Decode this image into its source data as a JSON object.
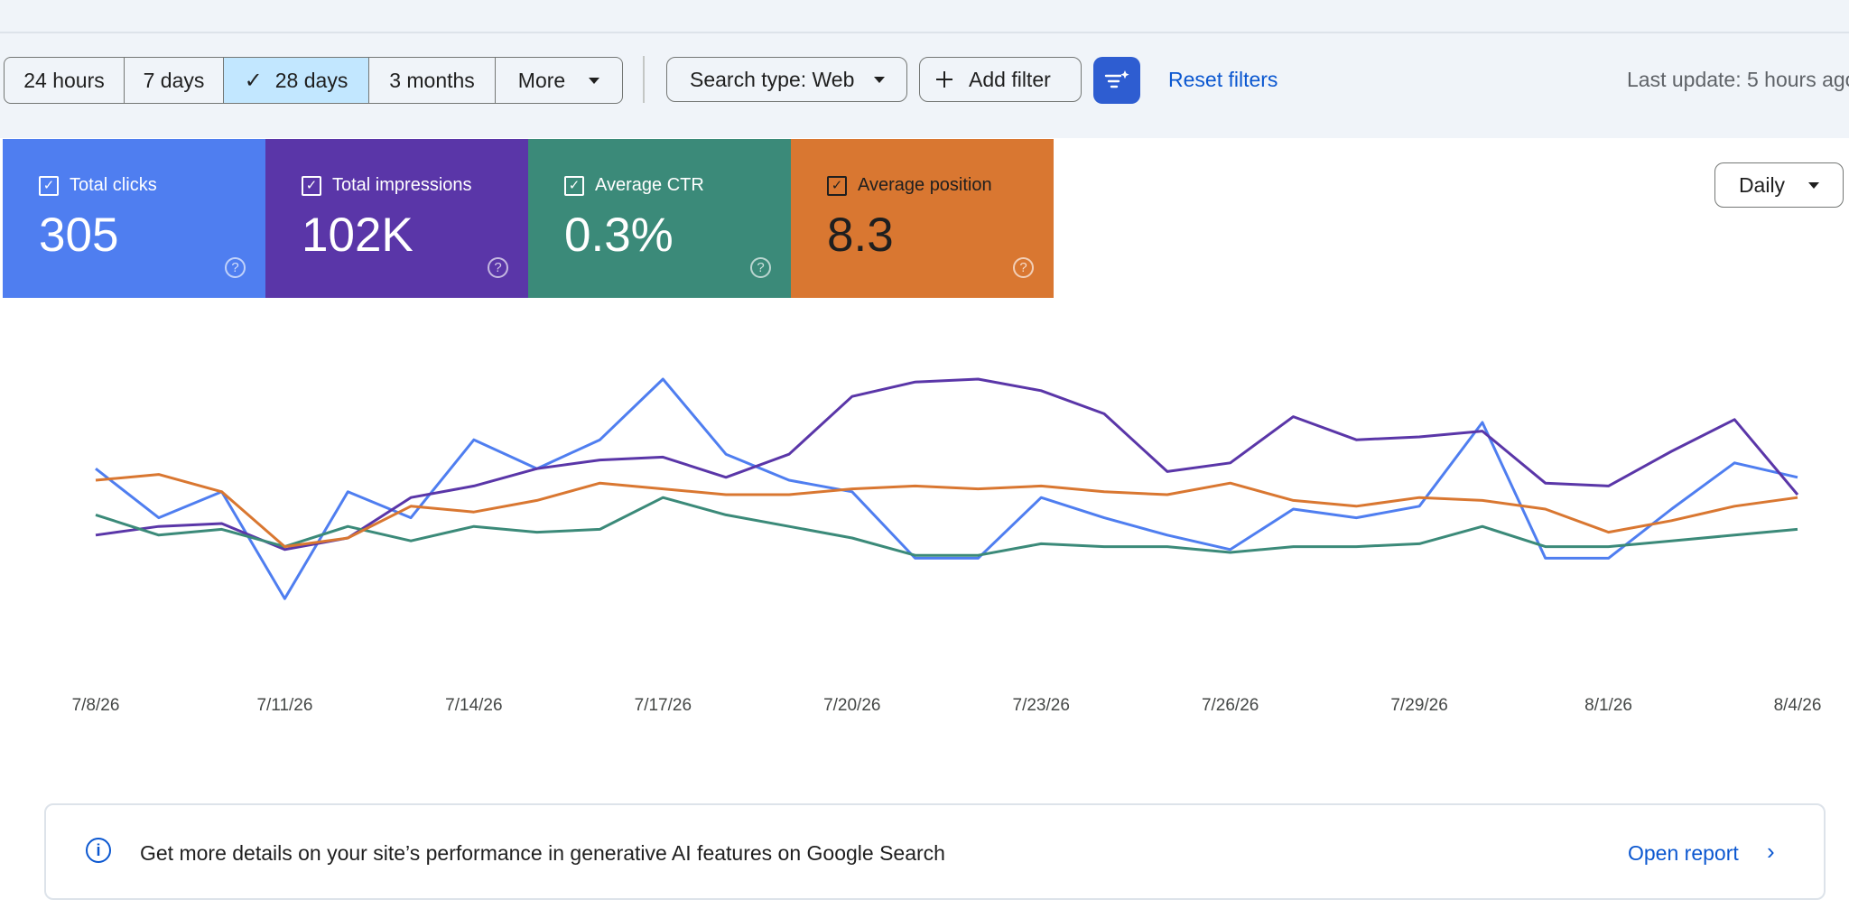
{
  "toolbar": {
    "ranges": [
      "24 hours",
      "7 days",
      "28 days",
      "3 months",
      "More"
    ],
    "selected_range": "28 days",
    "search_type": "Search type: Web",
    "add_filter": "Add filter",
    "reset_filters": "Reset filters",
    "last_update": "Last update: 5 hours ago"
  },
  "metrics": [
    {
      "label": "Total clicks",
      "value": "305",
      "color": "#4f7ef0",
      "checked": true
    },
    {
      "label": "Total impressions",
      "value": "102K",
      "color": "#5a36a8",
      "checked": true
    },
    {
      "label": "Average CTR",
      "value": "0.3%",
      "color": "#3b8a79",
      "checked": true
    },
    {
      "label": "Average position",
      "value": "8.3",
      "color": "#d97731",
      "checked": true
    }
  ],
  "granularity": "Daily",
  "chart_data": {
    "type": "line",
    "x": [
      "7/8/26",
      "7/9/26",
      "7/10/26",
      "7/11/26",
      "7/12/26",
      "7/13/26",
      "7/14/26",
      "7/15/26",
      "7/16/26",
      "7/17/26",
      "7/18/26",
      "7/19/26",
      "7/20/26",
      "7/21/26",
      "7/22/26",
      "7/23/26",
      "7/24/26",
      "7/25/26",
      "7/26/26",
      "7/27/26",
      "7/28/26",
      "7/29/26",
      "7/30/26",
      "7/31/26",
      "8/1/26",
      "8/2/26",
      "8/3/26",
      "8/4/26"
    ],
    "x_tick_labels": [
      "7/8/26",
      "7/11/26",
      "7/14/26",
      "7/17/26",
      "7/20/26",
      "7/23/26",
      "7/26/26",
      "7/29/26",
      "8/1/26",
      "8/4/26"
    ],
    "series_colors": [
      "#4f7ef0",
      "#5a36a8",
      "#3b8a79",
      "#d97731"
    ],
    "series": [
      {
        "name": "Total clicks",
        "values": [
          0.69,
          0.52,
          0.61,
          0.24,
          0.61,
          0.52,
          0.79,
          0.69,
          0.79,
          1.0,
          0.74,
          0.65,
          0.61,
          0.38,
          0.38,
          0.59,
          0.52,
          0.46,
          0.41,
          0.55,
          0.52,
          0.56,
          0.85,
          0.38,
          0.38,
          0.55,
          0.71,
          0.66
        ]
      },
      {
        "name": "Total impressions",
        "values": [
          0.46,
          0.49,
          0.5,
          0.41,
          0.45,
          0.59,
          0.63,
          0.69,
          0.72,
          0.73,
          0.66,
          0.74,
          0.94,
          0.99,
          1.0,
          0.96,
          0.88,
          0.68,
          0.71,
          0.87,
          0.79,
          0.8,
          0.82,
          0.64,
          0.63,
          0.75,
          0.86,
          0.6
        ]
      },
      {
        "name": "Average CTR",
        "values": [
          0.53,
          0.46,
          0.48,
          0.42,
          0.49,
          0.44,
          0.49,
          0.47,
          0.48,
          0.59,
          0.53,
          0.49,
          0.45,
          0.39,
          0.39,
          0.43,
          0.42,
          0.42,
          0.4,
          0.42,
          0.42,
          0.43,
          0.49,
          0.42,
          0.42,
          0.44,
          0.46,
          0.48
        ]
      },
      {
        "name": "Average position",
        "values": [
          0.65,
          0.67,
          0.61,
          0.42,
          0.45,
          0.56,
          0.54,
          0.58,
          0.64,
          0.62,
          0.6,
          0.6,
          0.62,
          0.63,
          0.62,
          0.63,
          0.61,
          0.6,
          0.64,
          0.58,
          0.56,
          0.59,
          0.58,
          0.55,
          0.47,
          0.51,
          0.56,
          0.59
        ]
      }
    ]
  },
  "banner": {
    "message": "Get more details on your site’s performance in generative AI features on Google Search",
    "link": "Open report"
  }
}
